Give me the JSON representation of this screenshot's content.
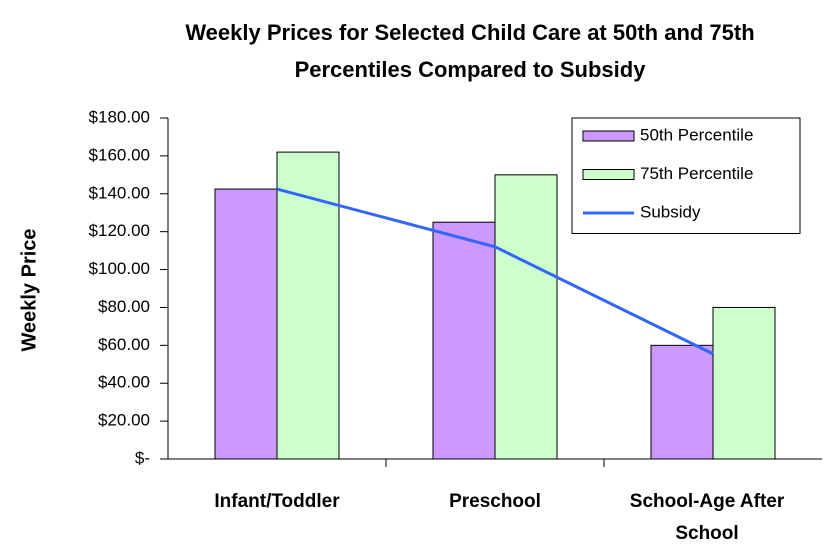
{
  "chart_data": {
    "type": "bar",
    "title": "Weekly Prices for Selected Child Care at 50th and 75th Percentiles Compared to Subsidy",
    "y_label": "Weekly Price",
    "categories": [
      "Infant/Toddler",
      "Preschool",
      "School-Age After School"
    ],
    "series": [
      {
        "name": "50th Percentile",
        "type": "bar",
        "color": "#cc99ff",
        "values": [
          142.5,
          125,
          60
        ]
      },
      {
        "name": "75th Percentile",
        "type": "bar",
        "color": "#ccffcc",
        "values": [
          162,
          150,
          80
        ]
      },
      {
        "name": "Subsidy",
        "type": "line",
        "color": "#3366ff",
        "values": [
          142.5,
          112,
          55.5
        ]
      }
    ],
    "ylim": [
      0,
      180
    ],
    "yticks": [
      {
        "value": 0,
        "label": "$-"
      },
      {
        "value": 20,
        "label": "$20.00"
      },
      {
        "value": 40,
        "label": "$40.00"
      },
      {
        "value": 60,
        "label": "$60.00"
      },
      {
        "value": 80,
        "label": "$80.00"
      },
      {
        "value": 100,
        "label": "$100.00"
      },
      {
        "value": 120,
        "label": "$120.00"
      },
      {
        "value": 140,
        "label": "$140.00"
      },
      {
        "value": 160,
        "label": "$160.00"
      },
      {
        "value": 180,
        "label": "$180.00"
      }
    ],
    "grid": false,
    "legend": "top-right"
  }
}
